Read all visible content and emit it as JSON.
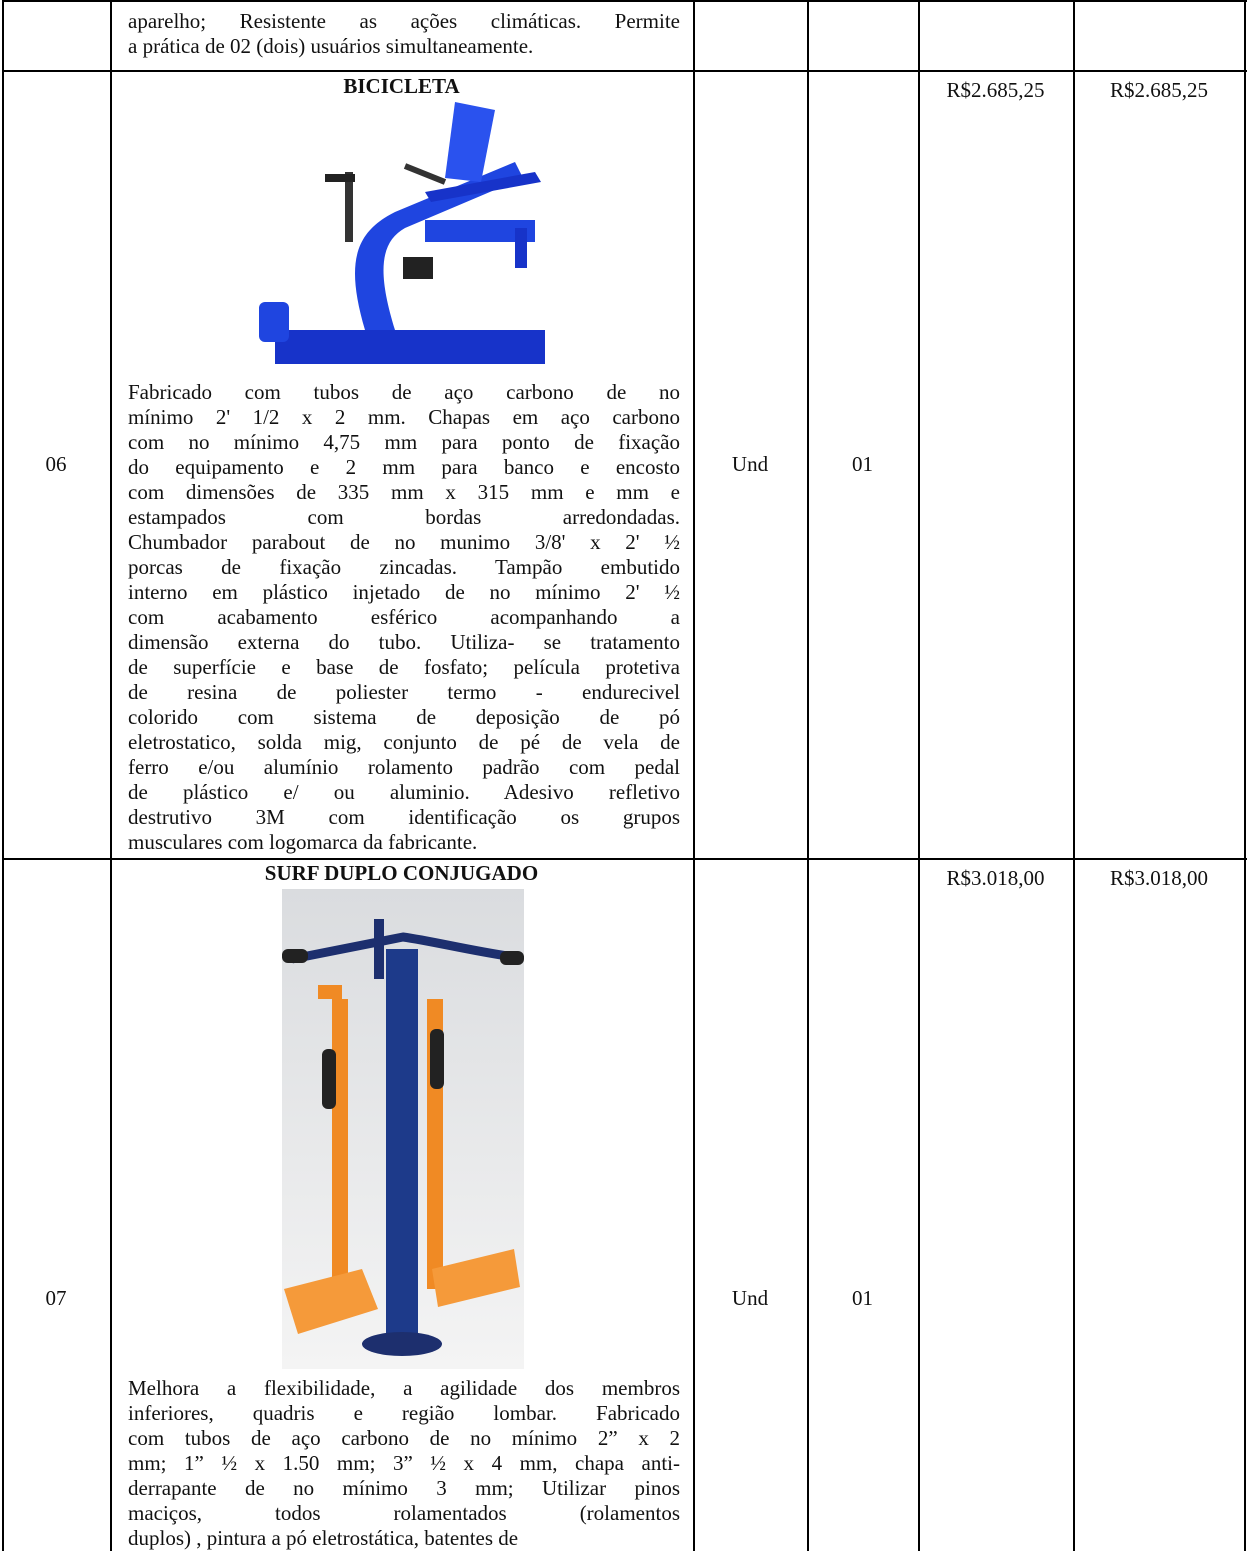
{
  "table": {
    "rows": [
      {
        "description": {
          "lines": [
            "aparelho; Resistente as ações climáticas. Permite",
            "a prática de 02 (dois) usuários simultaneamente."
          ]
        }
      },
      {
        "item": "06",
        "title": "BICICLETA",
        "description": {
          "lines": [
            "Fabricado com tubos de aço carbono de no",
            "mínimo 2' 1/2 x 2 mm. Chapas em aço carbono",
            "com no mínimo 4,75 mm para ponto de fixação",
            "do equipamento e 2 mm para banco e encosto",
            "com dimensões de 335 mm x 315 mm e mm e",
            "estampados com bordas arredondadas.",
            "Chumbador parabout de no munimo 3/8' x 2' ½",
            "porcas de fixação zincadas. Tampão embutido",
            "interno em plástico injetado de no mínimo 2' ½",
            "com acabamento esférico acompanhando a",
            "dimensão externa do tubo. Utiliza- se tratamento",
            "de superfície e base de fosfato; película protetiva",
            "de resina de poliester termo - endurecivel",
            "colorido com sistema de deposição de pó",
            "eletrostatico, solda mig, conjunto de pé de vela de",
            "ferro e/ou alumínio rolamento padrão com pedal",
            "de plástico e/ ou aluminio. Adesivo refletivo",
            "destrutivo 3M com identificação os grupos",
            "musculares com logomarca da fabricante."
          ]
        },
        "unit": "Und",
        "quantity": "01",
        "unit_price": "R$2.685,25",
        "total_price": "R$2.685,25"
      },
      {
        "item": "07",
        "title": "SURF DUPLO CONJUGADO",
        "description": {
          "lines": [
            "Melhora a flexibilidade, a agilidade dos membros",
            "inferiores, quadris e região lombar. Fabricado",
            "com tubos de aço carbono de no mínimo 2” x 2",
            "mm; 1” ½ x 1.50 mm; 3” ½ x 4 mm, chapa anti-",
            "derrapante de no mínimo 3 mm; Utilizar pinos",
            "maciços, todos rolamentados (rolamentos",
            "duplos) , pintura a pó eletrostática, batentes de"
          ]
        },
        "unit": "Und",
        "quantity": "01",
        "unit_price": "R$3.018,00",
        "total_price": "R$3.018,00"
      }
    ]
  }
}
